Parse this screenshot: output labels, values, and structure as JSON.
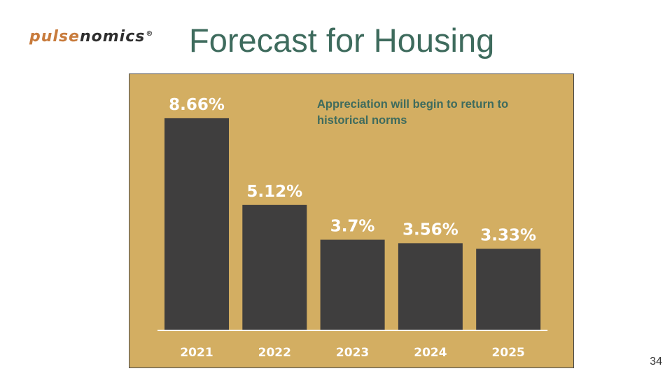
{
  "header": {
    "logo": {
      "part1": "pulse",
      "part2": "nomics",
      "mark": "®"
    },
    "title": "Forecast for Housing"
  },
  "page_number": "34",
  "colors": {
    "title": "#3e6b5d",
    "panel_bg": "#d3ae62",
    "bar": "#3f3e3e",
    "bar_label": "#ffffff",
    "annotation": "#3e6b5d",
    "logo_primary": "#c87b3c",
    "logo_secondary": "#2f2f2f"
  },
  "chart_data": {
    "type": "bar",
    "title": "",
    "xlabel": "",
    "ylabel": "",
    "categories": [
      "2021",
      "2022",
      "2023",
      "2024",
      "2025"
    ],
    "values": [
      8.66,
      5.12,
      3.7,
      3.56,
      3.33
    ],
    "data_labels": [
      "8.66%",
      "5.12%",
      "3.7%",
      "3.56%",
      "3.33%"
    ],
    "ylim": [
      0,
      10
    ],
    "grid": false,
    "legend": "none",
    "annotation": [
      "Appreciation will begin to return to",
      "historical norms"
    ]
  }
}
